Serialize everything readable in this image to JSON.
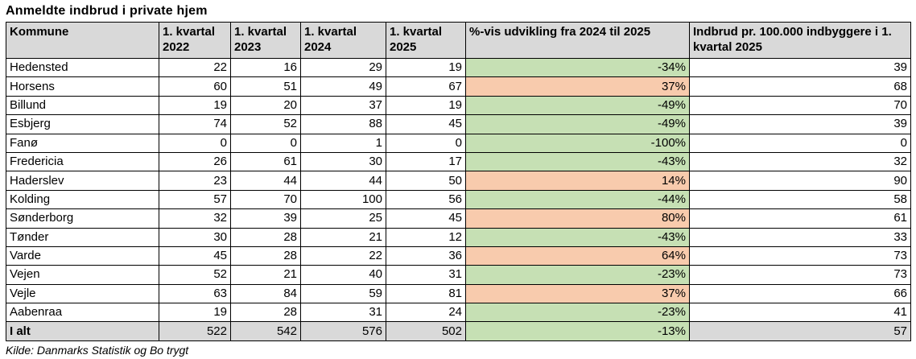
{
  "title": "Anmeldte indbrud i private hjem",
  "source": "Kilde: Danmarks Statistik og Bo trygt",
  "colors": {
    "increase": "#f8cbad",
    "decrease": "#c6e0b4",
    "header_bg": "#d9d9d9"
  },
  "headers": [
    "Kommune",
    "1. kvartal 2022",
    "1. kvartal 2023",
    "1. kvartal 2024",
    "1. kvartal 2025",
    "%-vis udvikling fra 2024 til 2025",
    "Indbrud pr. 100.000 indbyggere i 1. kvartal 2025"
  ],
  "rows": [
    {
      "kommune": "Hedensted",
      "q2022": "22",
      "q2023": "16",
      "q2024": "29",
      "q2025": "19",
      "change": "-34%",
      "per100k": "39"
    },
    {
      "kommune": "Horsens",
      "q2022": "60",
      "q2023": "51",
      "q2024": "49",
      "q2025": "67",
      "change": "37%",
      "per100k": "68"
    },
    {
      "kommune": "Billund",
      "q2022": "19",
      "q2023": "20",
      "q2024": "37",
      "q2025": "19",
      "change": "-49%",
      "per100k": "70"
    },
    {
      "kommune": "Esbjerg",
      "q2022": "74",
      "q2023": "52",
      "q2024": "88",
      "q2025": "45",
      "change": "-49%",
      "per100k": "39"
    },
    {
      "kommune": "Fanø",
      "q2022": "0",
      "q2023": "0",
      "q2024": "1",
      "q2025": "0",
      "change": "-100%",
      "per100k": "0"
    },
    {
      "kommune": "Fredericia",
      "q2022": "26",
      "q2023": "61",
      "q2024": "30",
      "q2025": "17",
      "change": "-43%",
      "per100k": "32"
    },
    {
      "kommune": "Haderslev",
      "q2022": "23",
      "q2023": "44",
      "q2024": "44",
      "q2025": "50",
      "change": "14%",
      "per100k": "90"
    },
    {
      "kommune": "Kolding",
      "q2022": "57",
      "q2023": "70",
      "q2024": "100",
      "q2025": "56",
      "change": "-44%",
      "per100k": "58"
    },
    {
      "kommune": "Sønderborg",
      "q2022": "32",
      "q2023": "39",
      "q2024": "25",
      "q2025": "45",
      "change": "80%",
      "per100k": "61"
    },
    {
      "kommune": "Tønder",
      "q2022": "30",
      "q2023": "28",
      "q2024": "21",
      "q2025": "12",
      "change": "-43%",
      "per100k": "33"
    },
    {
      "kommune": "Varde",
      "q2022": "45",
      "q2023": "28",
      "q2024": "22",
      "q2025": "36",
      "change": "64%",
      "per100k": "73"
    },
    {
      "kommune": "Vejen",
      "q2022": "52",
      "q2023": "21",
      "q2024": "40",
      "q2025": "31",
      "change": "-23%",
      "per100k": "73"
    },
    {
      "kommune": "Vejle",
      "q2022": "63",
      "q2023": "84",
      "q2024": "59",
      "q2025": "81",
      "change": "37%",
      "per100k": "66"
    },
    {
      "kommune": "Aabenraa",
      "q2022": "19",
      "q2023": "28",
      "q2024": "31",
      "q2025": "24",
      "change": "-23%",
      "per100k": "41"
    }
  ],
  "total": {
    "kommune": "I alt",
    "q2022": "522",
    "q2023": "542",
    "q2024": "576",
    "q2025": "502",
    "change": "-13%",
    "per100k": "57"
  }
}
